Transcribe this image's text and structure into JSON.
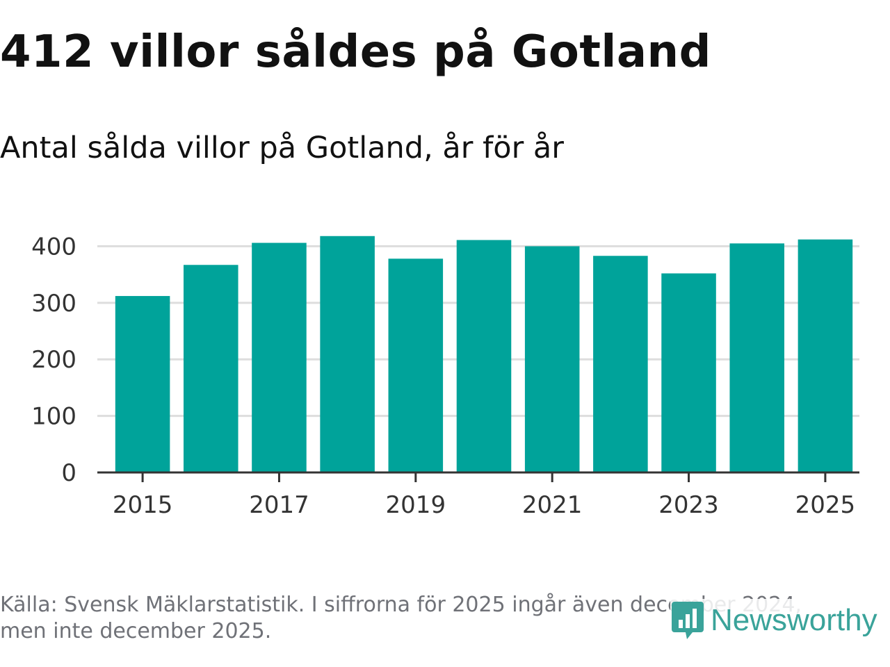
{
  "title": "412 villor såldes på Gotland",
  "subtitle": "Antal sålda villor på Gotland, år för år",
  "source": "Källa: Svensk Mäklarstatistik. I siffrorna för 2025 ingår även december 2024, men inte december 2025.",
  "logo": {
    "text": "Newsworthy",
    "icon": "newsworthy-logo-icon"
  },
  "colors": {
    "bar": "#00a39a",
    "grid": "#dddddd",
    "axis": "#333333",
    "logo": "#3aa39a"
  },
  "chart_data": {
    "type": "bar",
    "title": "412 villor såldes på Gotland",
    "subtitle": "Antal sålda villor på Gotland, år för år",
    "xlabel": "",
    "ylabel": "",
    "categories": [
      "2015",
      "2016",
      "2017",
      "2018",
      "2019",
      "2020",
      "2021",
      "2022",
      "2023",
      "2024",
      "2025"
    ],
    "values": [
      312,
      367,
      406,
      418,
      378,
      411,
      400,
      383,
      352,
      405,
      412
    ],
    "x_tick_labels": [
      "2015",
      "2017",
      "2019",
      "2021",
      "2023",
      "2025"
    ],
    "y_ticks": [
      0,
      100,
      200,
      300,
      400
    ],
    "ylim": [
      0,
      430
    ],
    "grid": true
  }
}
